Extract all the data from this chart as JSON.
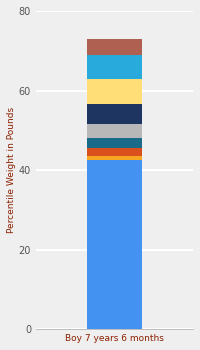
{
  "category": "Boy 7 years 6 months",
  "segments": [
    {
      "value": 42.5,
      "color": "#4392F1"
    },
    {
      "value": 1.0,
      "color": "#F5A623"
    },
    {
      "value": 2.0,
      "color": "#D94F1E"
    },
    {
      "value": 2.5,
      "color": "#1A6B8A"
    },
    {
      "value": 3.5,
      "color": "#B8B8B8"
    },
    {
      "value": 5.0,
      "color": "#1E3461"
    },
    {
      "value": 6.5,
      "color": "#FFDD77"
    },
    {
      "value": 6.0,
      "color": "#29AADC"
    },
    {
      "value": 4.0,
      "color": "#B06050"
    }
  ],
  "ylabel": "Percentile Weight in Pounds",
  "xlabel_color": "#8B2000",
  "ylabel_color": "#8B2000",
  "ylim": [
    0,
    80
  ],
  "yticks": [
    0,
    20,
    40,
    60,
    80
  ],
  "background_color": "#EFEFEF",
  "grid_color": "#FFFFFF",
  "bar_width": 0.35
}
